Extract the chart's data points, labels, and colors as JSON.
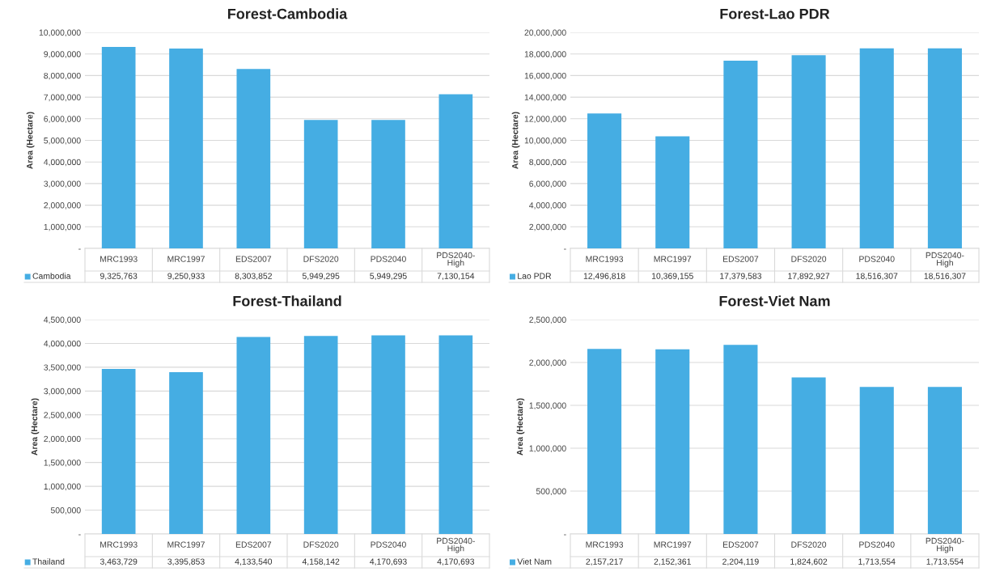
{
  "chart_data": [
    {
      "type": "bar",
      "title": "Forest-Cambodia",
      "ylabel": "Area (Hectare)",
      "categories": [
        "MRC1993",
        "MRC1997",
        "EDS2007",
        "DFS2020",
        "PDS2040",
        "PDS2040-\nHigh"
      ],
      "series": [
        {
          "name": "Cambodia",
          "color": "#45ade3",
          "values": [
            9325763,
            9250933,
            8303852,
            5949295,
            5949295,
            7130154
          ],
          "value_labels": [
            "9,325,763",
            "9,250,933",
            "8,303,852",
            "5,949,295",
            "5,949,295",
            "7,130,154"
          ]
        }
      ],
      "ylim": [
        0,
        10000000
      ],
      "yticks": [
        {
          "value": 0,
          "label": "-"
        },
        {
          "value": 1000000,
          "label": "1,000,000"
        },
        {
          "value": 2000000,
          "label": "2,000,000"
        },
        {
          "value": 3000000,
          "label": "3,000,000"
        },
        {
          "value": 4000000,
          "label": "4,000,000"
        },
        {
          "value": 5000000,
          "label": "5,000,000"
        },
        {
          "value": 6000000,
          "label": "6,000,000"
        },
        {
          "value": 7000000,
          "label": "7,000,000"
        },
        {
          "value": 8000000,
          "label": "8,000,000"
        },
        {
          "value": 9000000,
          "label": "9,000,000"
        },
        {
          "value": 10000000,
          "label": "10,000,000"
        }
      ],
      "grid": "y",
      "legend": "bottom"
    },
    {
      "type": "bar",
      "title": "Forest-Lao PDR",
      "ylabel": "Area (Hectare)",
      "categories": [
        "MRC1993",
        "MRC1997",
        "EDS2007",
        "DFS2020",
        "PDS2040",
        "PDS2040-\nHigh"
      ],
      "series": [
        {
          "name": "Lao PDR",
          "color": "#45ade3",
          "values": [
            12496818,
            10369155,
            17379583,
            17892927,
            18516307,
            18516307
          ],
          "value_labels": [
            "12,496,818",
            "10,369,155",
            "17,379,583",
            "17,892,927",
            "18,516,307",
            "18,516,307"
          ]
        }
      ],
      "ylim": [
        0,
        20000000
      ],
      "yticks": [
        {
          "value": 0,
          "label": "-"
        },
        {
          "value": 2000000,
          "label": "2,000,000"
        },
        {
          "value": 4000000,
          "label": "4,000,000"
        },
        {
          "value": 6000000,
          "label": "6,000,000"
        },
        {
          "value": 8000000,
          "label": "8,000,000"
        },
        {
          "value": 10000000,
          "label": "10,000,000"
        },
        {
          "value": 12000000,
          "label": "12,000,000"
        },
        {
          "value": 14000000,
          "label": "14,000,000"
        },
        {
          "value": 16000000,
          "label": "16,000,000"
        },
        {
          "value": 18000000,
          "label": "18,000,000"
        },
        {
          "value": 20000000,
          "label": "20,000,000"
        }
      ],
      "grid": "y",
      "legend": "bottom"
    },
    {
      "type": "bar",
      "title": "Forest-Thailand",
      "ylabel": "Area (Hectare)",
      "categories": [
        "MRC1993",
        "MRC1997",
        "EDS2007",
        "DFS2020",
        "PDS2040",
        "PDS2040-\nHigh"
      ],
      "series": [
        {
          "name": "Thailand",
          "color": "#45ade3",
          "values": [
            3463729,
            3395853,
            4133540,
            4158142,
            4170693,
            4170693
          ],
          "value_labels": [
            "3,463,729",
            "3,395,853",
            "4,133,540",
            "4,158,142",
            "4,170,693",
            "4,170,693"
          ]
        }
      ],
      "ylim": [
        0,
        4500000
      ],
      "yticks": [
        {
          "value": 0,
          "label": "-"
        },
        {
          "value": 500000,
          "label": "500,000"
        },
        {
          "value": 1000000,
          "label": "1,000,000"
        },
        {
          "value": 1500000,
          "label": "1,500,000"
        },
        {
          "value": 2000000,
          "label": "2,000,000"
        },
        {
          "value": 2500000,
          "label": "2,500,000"
        },
        {
          "value": 3000000,
          "label": "3,000,000"
        },
        {
          "value": 3500000,
          "label": "3,500,000"
        },
        {
          "value": 4000000,
          "label": "4,000,000"
        },
        {
          "value": 4500000,
          "label": "4,500,000"
        }
      ],
      "grid": "y",
      "legend": "bottom"
    },
    {
      "type": "bar",
      "title": "Forest-Viet Nam",
      "ylabel": "Area (Hectare)",
      "categories": [
        "MRC1993",
        "MRC1997",
        "EDS2007",
        "DFS2020",
        "PDS2040",
        "PDS2040-\nHigh"
      ],
      "series": [
        {
          "name": "Viet Nam",
          "color": "#45ade3",
          "values": [
            2157217,
            2152361,
            2204119,
            1824602,
            1713554,
            1713554
          ],
          "value_labels": [
            "2,157,217",
            "2,152,361",
            "2,204,119",
            "1,824,602",
            "1,713,554",
            "1,713,554"
          ]
        }
      ],
      "ylim": [
        0,
        2500000
      ],
      "yticks": [
        {
          "value": 0,
          "label": "-"
        },
        {
          "value": 500000,
          "label": "500,000"
        },
        {
          "value": 1000000,
          "label": "1,000,000"
        },
        {
          "value": 1500000,
          "label": "1,500,000"
        },
        {
          "value": 2000000,
          "label": "2,000,000"
        },
        {
          "value": 2500000,
          "label": "2,500,000"
        }
      ],
      "grid": "y",
      "legend": "bottom"
    }
  ]
}
